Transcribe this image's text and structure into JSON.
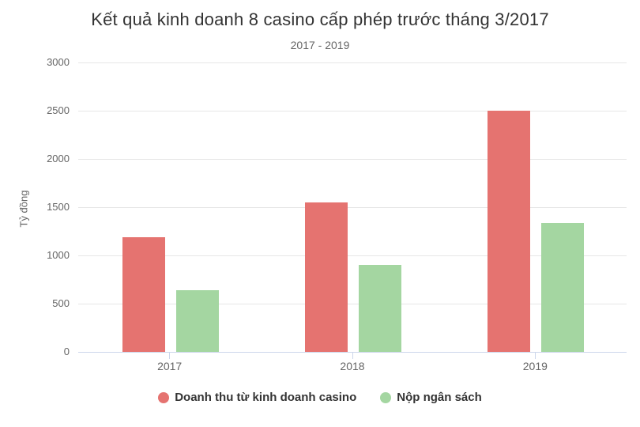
{
  "chart_data": {
    "type": "bar",
    "title": "Kết quả kinh doanh 8 casino cấp phép trước tháng 3/2017",
    "subtitle": "2017 - 2019",
    "ylabel": "Tỷ đồng",
    "xlabel": "",
    "categories": [
      "2017",
      "2018",
      "2019"
    ],
    "series": [
      {
        "name": "Doanh thu từ kinh doanh casino",
        "color": "#e57370",
        "values": [
          1190,
          1550,
          2500
        ]
      },
      {
        "name": "Nộp ngân sách",
        "color": "#a4d6a1",
        "values": [
          640,
          900,
          1340
        ]
      }
    ],
    "ylim": [
      0,
      3000
    ],
    "ytick_step": 500,
    "ytick_labels": [
      "0",
      "500",
      "1000",
      "1500",
      "2000",
      "2500",
      "3000"
    ],
    "grid": true,
    "legend_position": "bottom"
  },
  "colors": {
    "background": "#ffffff",
    "title_text": "#333333",
    "subtitle_text": "#666666",
    "axis_text": "#666666",
    "legend_text": "#333333",
    "gridline": "#e6e6e6",
    "axis_line": "#ccd6eb"
  }
}
